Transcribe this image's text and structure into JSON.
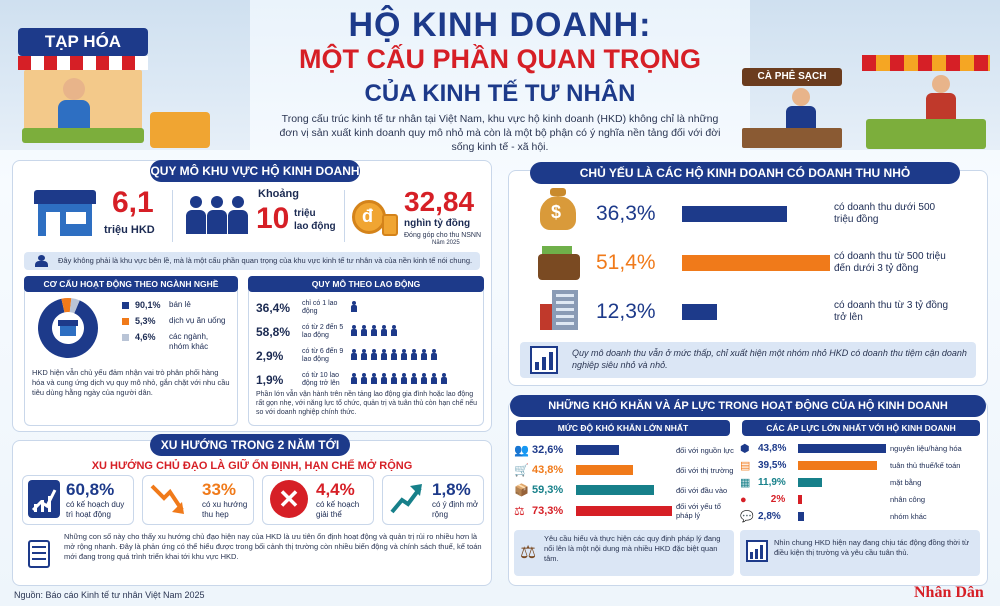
{
  "header": {
    "title_line1": "HỘ KINH DOANH:",
    "title_line2": "MỘT CẤU PHẦN QUAN TRỌNG",
    "title_line3": "CỦA KINH TẾ TƯ NHÂN",
    "intro": "Trong cấu trúc kinh tế tư nhân tại Việt Nam, khu vực hộ kinh doanh (HKD) không chỉ là những đơn vị sản xuất kinh doanh quy mô nhỏ mà còn là một bộ phận có ý nghĩa nền tảng đối với đời sống kinh tế - xã hội.",
    "shop_left_sign": "TẠP HÓA",
    "shop_right_sign": "CÀ PHÊ SẠCH"
  },
  "scale": {
    "heading": "QUY MÔ KHU VỰC HỘ KINH DOANH",
    "hkd_value": "6,1",
    "hkd_unit": "triệu HKD",
    "labor_prefix": "Khoảng",
    "labor_value": "10",
    "labor_unit1": "triệu",
    "labor_unit2": "lao động",
    "nsnn_value": "32,84",
    "nsnn_unit": "nghìn tỷ đồng",
    "nsnn_note1": "Đóng góp cho thu NSNN",
    "nsnn_note2": "Năm 2025",
    "note": "Đây không phải là khu vực bên lề, mà là một cấu phần quan trọng của khu vực kinh tế tư nhân và của nền kinh tế nói chung."
  },
  "sector": {
    "heading": "CƠ CẤU HOẠT ĐỘNG THEO NGÀNH NGHỀ",
    "items": [
      {
        "pct": "90,1%",
        "label": "bán lẻ",
        "color": "#1d3a8a"
      },
      {
        "pct": "5,3%",
        "label": "dịch vụ ăn uống",
        "color": "#f07a1a"
      },
      {
        "pct": "4,6%",
        "label": "các ngành, nhóm khác",
        "color": "#b9c4d6"
      }
    ],
    "note": "HKD hiện vẫn chủ yếu đảm nhận vai trò phân phối hàng hóa và cung ứng dịch vụ quy mô nhỏ, gắn chặt với nhu cầu tiêu dùng hằng ngày của người dân."
  },
  "labor_scale": {
    "heading": "QUY MÔ THEO LAO ĐỘNG",
    "rows": [
      {
        "pct": "36,4%",
        "label": "chỉ có 1 lao động",
        "people": 1
      },
      {
        "pct": "58,8%",
        "label": "có từ 2 đến 5 lao động",
        "people": 5
      },
      {
        "pct": "2,9%",
        "label": "có từ 6 đến 9 lao động",
        "people": 9
      },
      {
        "pct": "1,9%",
        "label": "có từ 10 lao động trở lên",
        "people": 10
      }
    ],
    "note": "Phần lớn vẫn vận hành trên nền tảng lao động gia đình hoặc lao động rất gọn nhẹ, với năng lực tổ chức, quản trị và tuân thủ còn hạn chế nếu so với doanh nghiệp chính thức."
  },
  "trend": {
    "heading": "XU HƯỚNG TRONG 2 NĂM TỚI",
    "subheading": "XU HƯỚNG CHỦ ĐẠO LÀ GIỮ ỔN ĐỊNH, HẠN CHẾ MỞ RỘNG",
    "items": [
      {
        "pct": "60,8%",
        "label": "có kế hoạch duy trì hoạt động",
        "color": "#1d3a8a"
      },
      {
        "pct": "33%",
        "label": "có xu hướng thu hẹp",
        "color": "#f07a1a"
      },
      {
        "pct": "4,4%",
        "label": "có kế hoạch giải thể",
        "color": "#d61f26"
      },
      {
        "pct": "1,8%",
        "label": "có ý định mở rộng",
        "color": "#1d3a8a"
      }
    ],
    "note": "Những con số này cho thấy xu hướng chủ đạo hiện nay của HKD là ưu tiên ổn định hoạt động và quản trị rủi ro nhiều hơn là mở rộng nhanh. Đây là phản ứng có thể hiểu được trong bối cảnh thị trường còn nhiều biến động và chính sách thuế, kế toán mới đang trong quá trình triển khai tới khu vực HKD."
  },
  "revenue": {
    "heading": "CHỦ YẾU LÀ CÁC HỘ KINH DOANH CÓ DOANH THU NHỎ",
    "rows": [
      {
        "pct": "36,3%",
        "value": 36.3,
        "label": "có doanh thu dưới 500 triệu đồng",
        "color": "#1d3a8a"
      },
      {
        "pct": "51,4%",
        "value": 51.4,
        "label": "có doanh thu từ 500 triệu đến dưới 3 tỷ đồng",
        "color": "#f07a1a"
      },
      {
        "pct": "12,3%",
        "value": 12.3,
        "label": "có doanh thu từ 3 tỷ đồng trở lên",
        "color": "#1d3a8a"
      }
    ],
    "note": "Quy mô doanh thu vẫn ở mức thấp, chỉ xuất hiện một nhóm nhỏ HKD có doanh thu tiệm cận doanh nghiệp siêu nhỏ và nhỏ."
  },
  "difficulty": {
    "heading": "NHỮNG KHÓ KHĂN VÀ ÁP LỰC TRONG HOẠT ĐỘNG CỦA HỘ KINH DOANH",
    "left_heading": "MỨC ĐỘ KHÓ KHĂN LỚN NHẤT",
    "left_rows": [
      {
        "pct": "32,6%",
        "value": 32.6,
        "label": "đối với nguồn lực",
        "color": "#1d3a8a"
      },
      {
        "pct": "43,8%",
        "value": 43.8,
        "label": "đối với thị trường",
        "color": "#f07a1a"
      },
      {
        "pct": "59,3%",
        "value": 59.3,
        "label": "đối với đầu vào",
        "color": "#17808a"
      },
      {
        "pct": "73,3%",
        "value": 73.3,
        "label": "đối với yếu tố pháp lý",
        "color": "#d61f26"
      }
    ],
    "left_note": "Yêu cầu hiểu và thực hiện các quy định pháp lý đang nổi lên là một nội dung mà nhiều HKD đặc biệt quan tâm.",
    "right_heading": "CÁC ÁP LỰC LỚN NHẤT VỚI HỘ KINH DOANH",
    "right_rows": [
      {
        "pct": "43,8%",
        "value": 43.8,
        "label": "nguyên liệu/hàng hóa",
        "color": "#1d3a8a"
      },
      {
        "pct": "39,5%",
        "value": 39.5,
        "label": "tuân thủ thuế/kế toán",
        "color": "#f07a1a"
      },
      {
        "pct": "11,9%",
        "value": 11.9,
        "label": "mặt bằng",
        "color": "#17808a"
      },
      {
        "pct": "2%",
        "value": 2,
        "label": "nhân công",
        "color": "#d61f26"
      },
      {
        "pct": "2,8%",
        "value": 2.8,
        "label": "nhóm khác",
        "color": "#1d3a8a"
      }
    ],
    "right_note": "Nhìn chung HKD hiện nay đang chịu tác động đồng thời từ điều kiện thị trường và yêu cầu tuân thủ."
  },
  "footer": {
    "source": "Nguồn: Báo cáo Kinh tế tư nhân Việt Nam 2025",
    "brand": "Nhân Dân"
  }
}
